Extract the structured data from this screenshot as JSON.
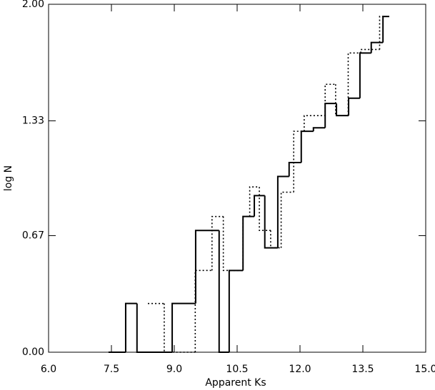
{
  "chart_data": {
    "type": "step-histogram",
    "xlabel": "Apparent Ks",
    "ylabel": "log N",
    "xlim": [
      6,
      15
    ],
    "ylim": [
      0,
      2
    ],
    "xticks": [
      {
        "value": 6,
        "label": "6.0"
      },
      {
        "value": 7.5,
        "label": "7.5"
      },
      {
        "value": 9,
        "label": "9.0"
      },
      {
        "value": 10.5,
        "label": "10.5"
      },
      {
        "value": 12,
        "label": "12.0"
      },
      {
        "value": 13.5,
        "label": "13.5"
      },
      {
        "value": 15,
        "label": "15.0"
      }
    ],
    "yticks": [
      {
        "value": 0,
        "label": "0.00"
      },
      {
        "value": 0.67,
        "label": "0.67"
      },
      {
        "value": 1.33,
        "label": "1.33"
      },
      {
        "value": 2,
        "label": "2.00"
      }
    ],
    "series": [
      {
        "color": "#000000",
        "dash": "solid",
        "bins": [
          7.43,
          7.84,
          8.11,
          8.95,
          9.51,
          10.07,
          10.31,
          10.64,
          10.91,
          11.16,
          11.47,
          11.74,
          12.03,
          12.32,
          12.6,
          12.87,
          13.16,
          13.43,
          13.7,
          13.98,
          14.13
        ],
        "values": [
          0,
          0.28,
          0,
          0.28,
          0.7,
          0,
          0.47,
          0.78,
          0.9,
          0.6,
          1.01,
          1.09,
          1.27,
          1.29,
          1.43,
          1.36,
          1.46,
          1.72,
          1.78,
          1.93
        ]
      },
      {
        "color": "#000000",
        "dash": "dotted",
        "bins": [
          8.37,
          8.76,
          9.5,
          9.9,
          10.17,
          10.64,
          10.8,
          11.03,
          11.3,
          11.55,
          11.85,
          12.1,
          12.6,
          12.85,
          13.15,
          13.45,
          13.9,
          14.05
        ],
        "values": [
          0.28,
          0,
          0.47,
          0.78,
          0.47,
          0.78,
          0.95,
          0.7,
          0.6,
          0.92,
          1.27,
          1.36,
          1.54,
          1.36,
          1.72,
          1.74,
          1.93
        ]
      }
    ]
  }
}
